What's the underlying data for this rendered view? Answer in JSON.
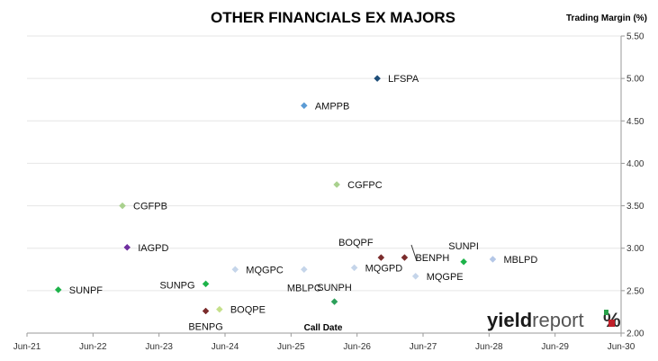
{
  "chart_data": {
    "type": "scatter",
    "title": "OTHER FINANCIALS EX MAJORS",
    "xlabel": "Call Date",
    "ylabel": "Trading Margin (%)",
    "xlim": [
      "2021-06-30",
      "2030-06-30"
    ],
    "ylim": [
      2.0,
      5.5
    ],
    "x_ticks": [
      "Jun-21",
      "Jun-22",
      "Jun-23",
      "Jun-24",
      "Jun-25",
      "Jun-26",
      "Jun-27",
      "Jun-28",
      "Jun-29",
      "Jun-30"
    ],
    "y_ticks": [
      "2.00",
      "2.50",
      "3.00",
      "3.50",
      "4.00",
      "4.50",
      "5.00",
      "5.50"
    ],
    "grid": "horizontal",
    "legend": "none",
    "points": [
      {
        "label": "LFSPA",
        "x": "2026-10-20",
        "y": 5.0,
        "color": "#1f4e79"
      },
      {
        "label": "AMPPB",
        "x": "2025-09-10",
        "y": 4.68,
        "color": "#5b9bd5"
      },
      {
        "label": "CGFPC",
        "x": "2026-03-10",
        "y": 3.75,
        "color": "#a9d18e"
      },
      {
        "label": "CGFPB",
        "x": "2022-12-10",
        "y": 3.5,
        "color": "#a9d18e"
      },
      {
        "label": "IAGPD",
        "x": "2023-01-05",
        "y": 3.01,
        "color": "#7030a0"
      },
      {
        "label": "BOQPF",
        "x": "2026-11-10",
        "y": 2.89,
        "color": "#7b2c2c"
      },
      {
        "label": "BENPH",
        "x": "2027-03-20",
        "y": 2.89,
        "color": "#7b2c2c"
      },
      {
        "label": "SUNPI",
        "x": "2028-02-10",
        "y": 2.84,
        "color": "#1db349"
      },
      {
        "label": "MBLPD",
        "x": "2028-07-20",
        "y": 2.87,
        "color": "#b4c7e7"
      },
      {
        "label": "MQGPC",
        "x": "2024-08-25",
        "y": 2.75,
        "color": "#c5d5ea"
      },
      {
        "label": "MBLPC",
        "x": "2025-09-10",
        "y": 2.75,
        "color": "#c5d5ea"
      },
      {
        "label": "MQGPD",
        "x": "2026-06-15",
        "y": 2.77,
        "color": "#c5d5ea"
      },
      {
        "label": "MQGPE",
        "x": "2027-05-20",
        "y": 2.67,
        "color": "#c5d5ea"
      },
      {
        "label": "SUNPF",
        "x": "2021-12-20",
        "y": 2.51,
        "color": "#1db349"
      },
      {
        "label": "SUNPG",
        "x": "2024-03-15",
        "y": 2.58,
        "color": "#1db349"
      },
      {
        "label": "SUNPH",
        "x": "2026-02-25",
        "y": 2.37,
        "color": "#2ca05a"
      },
      {
        "label": "BOQPE",
        "x": "2024-05-30",
        "y": 2.28,
        "color": "#c5e08a"
      },
      {
        "label": "BENPG",
        "x": "2024-03-15",
        "y": 2.26,
        "color": "#7b2c2c"
      }
    ]
  },
  "branding": {
    "logo_text_bold": "yield",
    "logo_text_light": "report",
    "logo_symbol": "%"
  }
}
